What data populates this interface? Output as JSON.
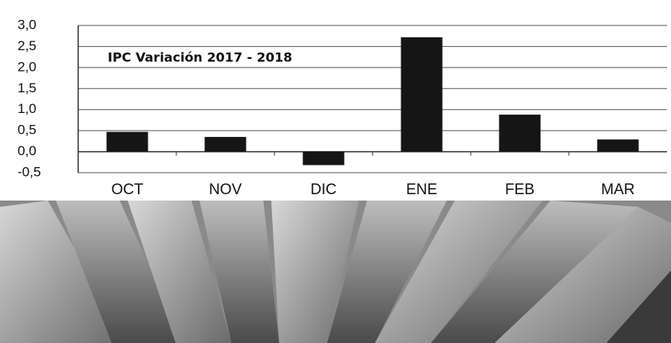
{
  "chart_data": {
    "type": "bar",
    "title": "IPC Variación 2017 - 2018",
    "categories": [
      "OCT",
      "NOV",
      "DIC",
      "ENE",
      "FEB",
      "MAR"
    ],
    "values": [
      0.47,
      0.35,
      -0.32,
      2.72,
      0.88,
      0.29
    ],
    "color": "#151515",
    "ylim": [
      -0.5,
      3.0
    ],
    "yticks": [
      {
        "value": -0.5,
        "label": "-0,5"
      },
      {
        "value": 0,
        "label": "0,0"
      },
      {
        "value": 0.5,
        "label": "0,5"
      },
      {
        "value": 1.0,
        "label": "1,0"
      },
      {
        "value": 1.5,
        "label": "1,5"
      },
      {
        "value": 2.0,
        "label": "2,0"
      },
      {
        "value": 2.5,
        "label": "2,5"
      },
      {
        "value": 3.0,
        "label": "3,0"
      }
    ],
    "grid": true
  }
}
